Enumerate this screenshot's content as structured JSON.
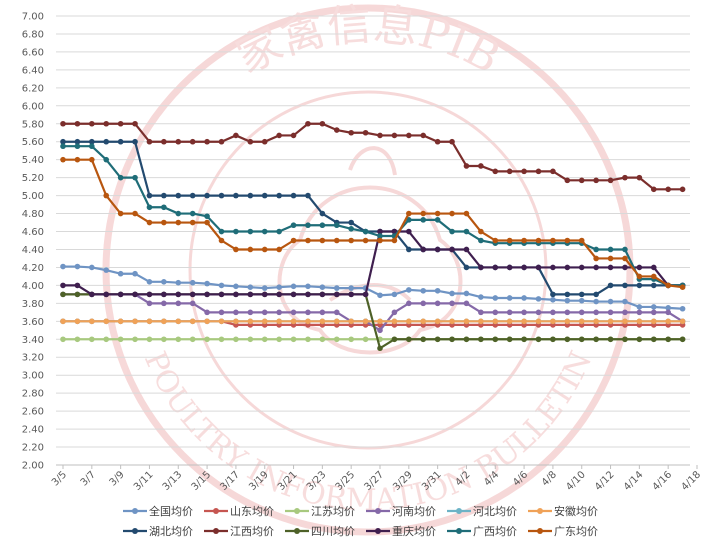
{
  "watermark": {
    "top_text": "家禽信息PIB",
    "bottom_text": "POULTRY INFORMATION BULLETIN",
    "color": "#f0b9b9"
  },
  "chart_data": {
    "type": "line",
    "title": "",
    "xlabel": "",
    "ylabel": "",
    "ylim": [
      2.0,
      7.0
    ],
    "yticks": [
      "2.00",
      "2.20",
      "2.40",
      "2.60",
      "2.80",
      "3.00",
      "3.20",
      "3.40",
      "3.60",
      "3.80",
      "4.00",
      "4.20",
      "4.40",
      "4.60",
      "4.80",
      "5.00",
      "5.20",
      "5.40",
      "5.60",
      "5.80",
      "6.00",
      "6.20",
      "6.40",
      "6.60",
      "6.80",
      "7.00"
    ],
    "x": [
      "3/5",
      "3/6",
      "3/7",
      "3/8",
      "3/9",
      "3/10",
      "3/11",
      "3/12",
      "3/13",
      "3/14",
      "3/15",
      "3/16",
      "3/17",
      "3/18",
      "3/19",
      "3/20",
      "3/21",
      "3/22",
      "3/23",
      "3/24",
      "3/25",
      "3/26",
      "3/27",
      "3/28",
      "3/29",
      "3/30",
      "3/31",
      "4/1",
      "4/2",
      "4/3",
      "4/4",
      "4/5",
      "4/6",
      "4/7",
      "4/8",
      "4/9",
      "4/10",
      "4/11",
      "4/12",
      "4/13",
      "4/14",
      "4/15",
      "4/16",
      "4/17"
    ],
    "xticks": [
      "3/5",
      "3/7",
      "3/9",
      "3/11",
      "3/13",
      "3/15",
      "3/17",
      "3/19",
      "3/21",
      "3/23",
      "3/25",
      "3/27",
      "3/29",
      "3/31",
      "4/2",
      "4/4",
      "4/6",
      "4/8",
      "4/10",
      "4/12",
      "4/14",
      "4/16",
      "4/18"
    ],
    "grid": true,
    "legend_position": "bottom",
    "series": [
      {
        "name": "全国均价",
        "color": "#6f94c4",
        "values": [
          4.21,
          4.21,
          4.2,
          4.17,
          4.13,
          4.13,
          4.04,
          4.04,
          4.03,
          4.03,
          4.02,
          4.0,
          3.99,
          3.98,
          3.97,
          3.98,
          3.99,
          3.99,
          3.98,
          3.97,
          3.97,
          3.97,
          3.89,
          3.9,
          3.95,
          3.94,
          3.94,
          3.91,
          3.91,
          3.87,
          3.86,
          3.86,
          3.86,
          3.85,
          3.84,
          3.83,
          3.83,
          3.82,
          3.82,
          3.82,
          3.76,
          3.76,
          3.75,
          3.74
        ]
      },
      {
        "name": "山东均价",
        "color": "#c65651",
        "values": [
          3.6,
          3.6,
          3.6,
          3.6,
          3.6,
          3.6,
          3.6,
          3.6,
          3.6,
          3.6,
          3.6,
          3.6,
          3.56,
          3.56,
          3.56,
          3.56,
          3.56,
          3.56,
          3.56,
          3.56,
          3.56,
          3.56,
          3.56,
          3.56,
          3.56,
          3.56,
          3.56,
          3.56,
          3.56,
          3.56,
          3.56,
          3.56,
          3.56,
          3.56,
          3.56,
          3.56,
          3.56,
          3.56,
          3.56,
          3.56,
          3.56,
          3.56,
          3.56,
          3.56
        ]
      },
      {
        "name": "江苏均价",
        "color": "#a8c97f",
        "values": [
          3.4,
          3.4,
          3.4,
          3.4,
          3.4,
          3.4,
          3.4,
          3.4,
          3.4,
          3.4,
          3.4,
          3.4,
          3.4,
          3.4,
          3.4,
          3.4,
          3.4,
          3.4,
          3.4,
          3.4,
          3.4,
          3.4,
          3.4,
          3.4,
          3.4,
          3.4,
          3.4,
          3.4,
          3.4,
          3.4,
          3.4,
          3.4,
          3.4,
          3.4,
          3.4,
          3.4,
          3.4,
          3.4,
          3.4,
          3.4,
          3.4,
          3.4,
          3.4,
          3.4
        ]
      },
      {
        "name": "河南均价",
        "color": "#8569a8",
        "values": [
          3.9,
          3.9,
          3.9,
          3.9,
          3.9,
          3.9,
          3.8,
          3.8,
          3.8,
          3.8,
          3.7,
          3.7,
          3.7,
          3.7,
          3.7,
          3.7,
          3.7,
          3.7,
          3.7,
          3.7,
          3.6,
          3.6,
          3.5,
          3.7,
          3.8,
          3.8,
          3.8,
          3.8,
          3.8,
          3.7,
          3.7,
          3.7,
          3.7,
          3.7,
          3.7,
          3.7,
          3.7,
          3.7,
          3.7,
          3.7,
          3.7,
          3.7,
          3.7,
          3.6
        ]
      },
      {
        "name": "河北均价",
        "color": "#6cb3c6",
        "values": [
          3.6,
          3.6,
          3.6,
          3.6,
          3.6,
          3.6,
          3.6,
          3.6,
          3.6,
          3.6,
          3.6,
          3.6,
          3.6,
          3.6,
          3.6,
          3.6,
          3.6,
          3.6,
          3.6,
          3.6,
          3.6,
          3.6,
          3.6,
          3.6,
          3.6,
          3.6,
          3.6,
          3.6,
          3.6,
          3.6,
          3.6,
          3.6,
          3.6,
          3.6,
          3.6,
          3.6,
          3.6,
          3.6,
          3.6,
          3.6,
          3.6,
          3.6,
          3.6,
          3.6
        ]
      },
      {
        "name": "安徽均价",
        "color": "#f0a258",
        "values": [
          3.6,
          3.6,
          3.6,
          3.6,
          3.6,
          3.6,
          3.6,
          3.6,
          3.6,
          3.6,
          3.6,
          3.6,
          3.6,
          3.6,
          3.6,
          3.6,
          3.6,
          3.6,
          3.6,
          3.6,
          3.6,
          3.6,
          3.6,
          3.6,
          3.6,
          3.6,
          3.6,
          3.6,
          3.6,
          3.6,
          3.6,
          3.6,
          3.6,
          3.6,
          3.6,
          3.6,
          3.6,
          3.6,
          3.6,
          3.6,
          3.6,
          3.6,
          3.6,
          3.6
        ]
      },
      {
        "name": "湖北均价",
        "color": "#234a6f",
        "values": [
          5.6,
          5.6,
          5.6,
          5.6,
          5.6,
          5.6,
          5.0,
          5.0,
          5.0,
          5.0,
          5.0,
          5.0,
          5.0,
          5.0,
          5.0,
          5.0,
          5.0,
          5.0,
          4.8,
          4.7,
          4.7,
          4.6,
          4.6,
          4.6,
          4.4,
          4.4,
          4.4,
          4.4,
          4.2,
          4.2,
          4.2,
          4.2,
          4.2,
          4.2,
          3.9,
          3.9,
          3.9,
          3.9,
          4.0,
          4.0,
          4.0,
          4.0,
          4.0,
          4.0
        ]
      },
      {
        "name": "江西均价",
        "color": "#7b2e2c",
        "values": [
          5.8,
          5.8,
          5.8,
          5.8,
          5.8,
          5.8,
          5.6,
          5.6,
          5.6,
          5.6,
          5.6,
          5.6,
          5.67,
          5.6,
          5.6,
          5.67,
          5.67,
          5.8,
          5.8,
          5.73,
          5.7,
          5.7,
          5.67,
          5.67,
          5.67,
          5.67,
          5.6,
          5.6,
          5.33,
          5.33,
          5.27,
          5.27,
          5.27,
          5.27,
          5.27,
          5.17,
          5.17,
          5.17,
          5.17,
          5.2,
          5.2,
          5.07,
          5.07,
          5.07
        ]
      },
      {
        "name": "四川均价",
        "color": "#4e6128",
        "values": [
          3.9,
          3.9,
          3.9,
          3.9,
          3.9,
          3.9,
          3.9,
          3.9,
          3.9,
          3.9,
          3.9,
          3.9,
          3.9,
          3.9,
          3.9,
          3.9,
          3.9,
          3.9,
          3.9,
          3.9,
          3.9,
          3.9,
          3.3,
          3.4,
          3.4,
          3.4,
          3.4,
          3.4,
          3.4,
          3.4,
          3.4,
          3.4,
          3.4,
          3.4,
          3.4,
          3.4,
          3.4,
          3.4,
          3.4,
          3.4,
          3.4,
          3.4,
          3.4,
          3.4
        ]
      },
      {
        "name": "重庆均价",
        "color": "#3f1f4f",
        "values": [
          4.0,
          4.0,
          3.9,
          3.9,
          3.9,
          3.9,
          3.9,
          3.9,
          3.9,
          3.9,
          3.9,
          3.9,
          3.9,
          3.9,
          3.9,
          3.9,
          3.9,
          3.9,
          3.9,
          3.9,
          3.9,
          3.9,
          4.6,
          4.6,
          4.6,
          4.4,
          4.4,
          4.4,
          4.4,
          4.2,
          4.2,
          4.2,
          4.2,
          4.2,
          4.2,
          4.2,
          4.2,
          4.2,
          4.2,
          4.2,
          4.2,
          4.2,
          4.0,
          4.0
        ]
      },
      {
        "name": "广西均价",
        "color": "#1f6d78",
        "values": [
          5.55,
          5.55,
          5.55,
          5.4,
          5.2,
          5.2,
          4.87,
          4.87,
          4.8,
          4.8,
          4.77,
          4.6,
          4.6,
          4.6,
          4.6,
          4.6,
          4.67,
          4.67,
          4.67,
          4.67,
          4.63,
          4.6,
          4.55,
          4.55,
          4.73,
          4.73,
          4.73,
          4.6,
          4.6,
          4.5,
          4.47,
          4.47,
          4.47,
          4.47,
          4.47,
          4.47,
          4.47,
          4.4,
          4.4,
          4.4,
          4.07,
          4.07,
          4.0,
          4.0
        ]
      },
      {
        "name": "广东均价",
        "color": "#b8560f",
        "values": [
          5.4,
          5.4,
          5.4,
          5.0,
          4.8,
          4.8,
          4.7,
          4.7,
          4.7,
          4.7,
          4.7,
          4.5,
          4.4,
          4.4,
          4.4,
          4.4,
          4.5,
          4.5,
          4.5,
          4.5,
          4.5,
          4.5,
          4.5,
          4.5,
          4.8,
          4.8,
          4.8,
          4.8,
          4.8,
          4.6,
          4.5,
          4.5,
          4.5,
          4.5,
          4.5,
          4.5,
          4.5,
          4.3,
          4.3,
          4.3,
          4.1,
          4.1,
          4.0,
          3.98
        ]
      }
    ]
  }
}
